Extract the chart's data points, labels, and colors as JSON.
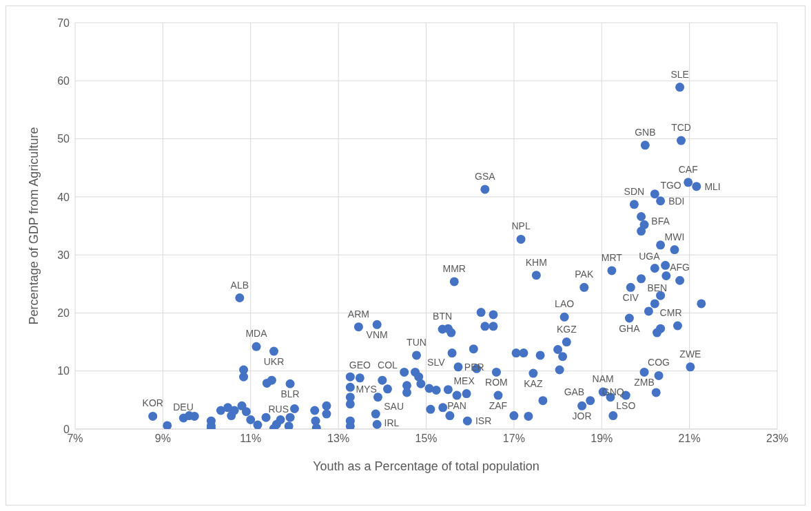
{
  "chart_data": {
    "type": "scatter",
    "xlabel": "Youth as a Percentage of total population",
    "ylabel": "Percentage of GDP from Agriculture",
    "xlim": [
      7,
      23
    ],
    "xticks": [
      {
        "value": 7,
        "label": "7%"
      },
      {
        "value": 9,
        "label": "9%"
      },
      {
        "value": 11,
        "label": "11%"
      },
      {
        "value": 13,
        "label": "13%"
      },
      {
        "value": 15,
        "label": "15%"
      },
      {
        "value": 17,
        "label": "17%"
      },
      {
        "value": 19,
        "label": "19%"
      },
      {
        "value": 21,
        "label": "21%"
      },
      {
        "value": 23,
        "label": "23%"
      }
    ],
    "ylim": [
      0,
      70
    ],
    "yticks": [
      0,
      10,
      20,
      30,
      40,
      50,
      60,
      70
    ],
    "grid": true,
    "marker": "circle",
    "series": [
      {
        "color": "#4472c4",
        "x": [
          8.77,
          9.1,
          9.47,
          9.6,
          9.72,
          10.1,
          10.1,
          10.1,
          10.32,
          10.48,
          10.56,
          10.63,
          10.8,
          10.84,
          10.84,
          10.75,
          11.13,
          11.53,
          11.0,
          11.16,
          11.35,
          11.37,
          11.48,
          11.53,
          11.59,
          11.68,
          11.9,
          11.9,
          11.87,
          12.46,
          12.48,
          12.5,
          12.73,
          12.73,
          13.27,
          13.27,
          13.27,
          13.27,
          13.27,
          13.49,
          13.46,
          13.88,
          13.85,
          13.88,
          14.0,
          14.12,
          14.56,
          14.56,
          14.5,
          14.75,
          14.83,
          14.78,
          14.88,
          15.07,
          15.23,
          15.1,
          15.38,
          15.54,
          15.59,
          15.57,
          15.73,
          15.92,
          15.94,
          16.08,
          16.15,
          16.34,
          16.53,
          16.53,
          16.25,
          16.6,
          16.64,
          17.0,
          17.33,
          17.05,
          17.22,
          17.6,
          17.44,
          17.66,
          18.0,
          18.11,
          18.04,
          18.55,
          18.74,
          19.03,
          19.2,
          19.26,
          19.55,
          19.97,
          20.3,
          20.24,
          21.02,
          20.34,
          20.26,
          20.73,
          21.27,
          20.78,
          20.47,
          20.34,
          20.21,
          20.07,
          19.63,
          19.66,
          19.9,
          19.23,
          18.6,
          18.15,
          18.2,
          20.21,
          20.45,
          20.66,
          20.34,
          19.9,
          19.97,
          19.9,
          19.74,
          20.21,
          20.34,
          20.78,
          20.81,
          19.99,
          20.97,
          21.16,
          16.34,
          17.16,
          17.51,
          15.64,
          15.37,
          15.5,
          13.27,
          10.9,
          12.0,
          13.9,
          15.5,
          15.7
        ],
        "values": [
          2.2,
          0.6,
          1.9,
          2.3,
          2.2,
          0.6,
          0.1,
          1.4,
          3.2,
          3.7,
          2.3,
          3.2,
          4.0,
          10.2,
          9.0,
          22.6,
          14.2,
          13.4,
          1.6,
          0.7,
          2.0,
          7.9,
          8.4,
          0.1,
          0.8,
          1.6,
          2.0,
          7.8,
          0.5,
          3.2,
          1.4,
          0.2,
          2.6,
          4.0,
          4.3,
          5.5,
          7.2,
          1.4,
          0.5,
          8.8,
          17.6,
          18.0,
          2.6,
          0.8,
          8.4,
          6.9,
          6.3,
          7.5,
          9.8,
          9.8,
          9.0,
          12.7,
          7.8,
          7.0,
          6.7,
          3.4,
          3.7,
          2.3,
          13.1,
          16.6,
          10.7,
          6.1,
          1.4,
          13.8,
          10.4,
          17.7,
          17.7,
          19.7,
          20.1,
          9.8,
          5.8,
          2.3,
          2.2,
          13.1,
          13.1,
          12.7,
          9.6,
          4.9,
          13.7,
          12.5,
          10.2,
          4.0,
          4.9,
          6.4,
          5.5,
          2.3,
          5.8,
          9.8,
          9.2,
          6.3,
          10.7,
          17.3,
          16.6,
          17.8,
          21.6,
          25.6,
          26.4,
          23.0,
          21.6,
          20.3,
          19.1,
          24.4,
          25.9,
          27.3,
          24.4,
          19.3,
          15.0,
          27.7,
          28.2,
          30.9,
          31.7,
          34.1,
          35.2,
          36.6,
          38.7,
          40.5,
          39.3,
          58.9,
          49.7,
          48.9,
          42.5,
          41.8,
          41.3,
          32.7,
          26.5,
          25.4,
          17.2,
          17.3,
          9.0,
          3.0,
          3.5,
          5.5,
          6.8,
          5.8
        ]
      }
    ],
    "annotations": [
      {
        "text": "KOR",
        "x": 8.77,
        "y": 2.2
      },
      {
        "text": "DEU",
        "x": 9.1,
        "y": 0.6
      },
      {
        "text": "ALB",
        "x": 10.75,
        "y": 22.6
      },
      {
        "text": "MDA",
        "x": 11.13,
        "y": 14.2
      },
      {
        "text": "UKR",
        "x": 11.53,
        "y": 13.4
      },
      {
        "text": "BLR",
        "x": 11.9,
        "y": 7.8
      },
      {
        "text": "RUS",
        "x": 12.0,
        "y": 3.5
      },
      {
        "text": "ARM",
        "x": 13.46,
        "y": 17.6
      },
      {
        "text": "VNM",
        "x": 13.88,
        "y": 18.0
      },
      {
        "text": "GEO",
        "x": 13.49,
        "y": 8.8
      },
      {
        "text": "MYS",
        "x": 14.0,
        "y": 8.4
      },
      {
        "text": "TUN",
        "x": 14.78,
        "y": 12.7
      },
      {
        "text": "COL",
        "x": 14.12,
        "y": 6.9
      },
      {
        "text": "SAU",
        "x": 13.9,
        "y": 5.5
      },
      {
        "text": "IRL",
        "x": 13.85,
        "y": 2.6
      },
      {
        "text": "MEX",
        "x": 15.5,
        "y": 6.8
      },
      {
        "text": "PAN",
        "x": 15.7,
        "y": 5.8
      },
      {
        "text": "ISR",
        "x": 15.94,
        "y": 1.4
      },
      {
        "text": "SLV",
        "x": 15.59,
        "y": 13.1
      },
      {
        "text": "PER",
        "x": 15.73,
        "y": 10.7
      },
      {
        "text": "ROM",
        "x": 16.6,
        "y": 9.8
      },
      {
        "text": "ZAF",
        "x": 16.64,
        "y": 5.8
      },
      {
        "text": "KAZ",
        "x": 17.44,
        "y": 9.6
      },
      {
        "text": "BTN",
        "x": 15.37,
        "y": 17.2
      },
      {
        "text": "MMR",
        "x": 15.64,
        "y": 25.4
      },
      {
        "text": "GSA",
        "x": 16.34,
        "y": 41.3
      },
      {
        "text": "NPL",
        "x": 17.16,
        "y": 32.7
      },
      {
        "text": "KHM",
        "x": 17.51,
        "y": 26.5
      },
      {
        "text": "LAO",
        "x": 18.15,
        "y": 19.3
      },
      {
        "text": "KGZ",
        "x": 18.2,
        "y": 15.0
      },
      {
        "text": "PAK",
        "x": 18.6,
        "y": 24.4
      },
      {
        "text": "MRT",
        "x": 19.23,
        "y": 27.3
      },
      {
        "text": "BEN",
        "x": 19.9,
        "y": 25.9
      },
      {
        "text": "CIV",
        "x": 19.66,
        "y": 24.4
      },
      {
        "text": "GHA",
        "x": 19.63,
        "y": 19.1
      },
      {
        "text": "CMR",
        "x": 20.21,
        "y": 21.6
      },
      {
        "text": "AFG",
        "x": 20.78,
        "y": 25.6
      },
      {
        "text": "UGA",
        "x": 20.45,
        "y": 28.2
      },
      {
        "text": "MWI",
        "x": 20.66,
        "y": 30.9
      },
      {
        "text": "BFA",
        "x": 20.34,
        "y": 31.7
      },
      {
        "text": "SDN",
        "x": 19.74,
        "y": 38.7
      },
      {
        "text": "TGO",
        "x": 20.21,
        "y": 40.5
      },
      {
        "text": "BDI",
        "x": 20.34,
        "y": 39.3
      },
      {
        "text": "GNB",
        "x": 19.99,
        "y": 48.9
      },
      {
        "text": "SLE",
        "x": 20.78,
        "y": 58.9
      },
      {
        "text": "TCD",
        "x": 20.81,
        "y": 49.7
      },
      {
        "text": "CAF",
        "x": 20.97,
        "y": 42.5
      },
      {
        "text": "MLI",
        "x": 21.16,
        "y": 41.8
      },
      {
        "text": "ZWE",
        "x": 21.02,
        "y": 10.7
      },
      {
        "text": "COG",
        "x": 20.3,
        "y": 9.2
      },
      {
        "text": "ZMB",
        "x": 19.97,
        "y": 9.8
      },
      {
        "text": "LSO",
        "x": 19.55,
        "y": 5.8
      },
      {
        "text": "NAM",
        "x": 19.03,
        "y": 6.4
      },
      {
        "text": "GAB",
        "x": 18.74,
        "y": 4.9
      },
      {
        "text": "JOR",
        "x": 18.55,
        "y": 4.0
      },
      {
        "text": "GNQ",
        "x": 19.26,
        "y": 2.3
      }
    ]
  }
}
